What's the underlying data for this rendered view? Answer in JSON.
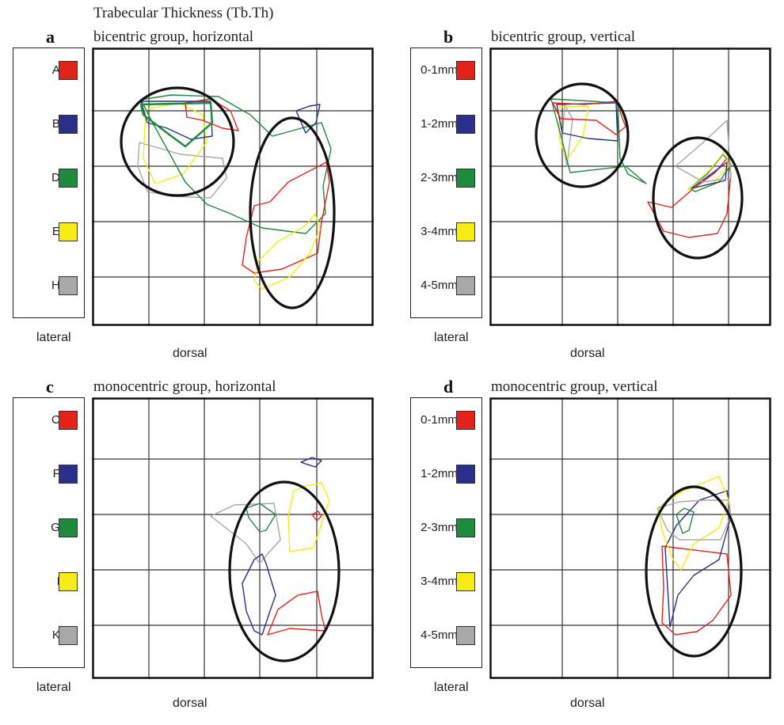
{
  "figure_title": "Trabecular Thickness (Tb.Th)",
  "side_label": "lateral",
  "bottom_label": "dorsal",
  "colors": {
    "red": "#e2231a",
    "blue": "#2b2f8c",
    "green": "#1e8a3c",
    "yellow": "#f7ec13",
    "gray": "#a8a8a8"
  },
  "panels": [
    {
      "letter": "a",
      "title": "bicentric group, horizontal",
      "legend": [
        {
          "label": "A:",
          "color": "#e2231a"
        },
        {
          "label": "B:",
          "color": "#2b2f8c"
        },
        {
          "label": "D:",
          "color": "#1e8a3c"
        },
        {
          "label": "E:",
          "color": "#f7ec13"
        },
        {
          "label": "H:",
          "color": "#a8a8a8"
        }
      ]
    },
    {
      "letter": "b",
      "title": "bicentric group, vertical",
      "legend": [
        {
          "label": "0-1mm:",
          "color": "#e2231a"
        },
        {
          "label": "1-2mm:",
          "color": "#2b2f8c"
        },
        {
          "label": "2-3mm:",
          "color": "#1e8a3c"
        },
        {
          "label": "3-4mm:",
          "color": "#f7ec13"
        },
        {
          "label": "4-5mm:",
          "color": "#a8a8a8"
        }
      ]
    },
    {
      "letter": "c",
      "title": "monocentric group, horizontal",
      "legend": [
        {
          "label": "C:",
          "color": "#e2231a"
        },
        {
          "label": "F:",
          "color": "#2b2f8c"
        },
        {
          "label": "G:",
          "color": "#1e8a3c"
        },
        {
          "label": "I:",
          "color": "#f7ec13"
        },
        {
          "label": "K:",
          "color": "#a8a8a8"
        }
      ]
    },
    {
      "letter": "d",
      "title": "monocentric group, vertical",
      "legend": [
        {
          "label": "0-1mm:",
          "color": "#e2231a"
        },
        {
          "label": "1-2mm:",
          "color": "#2b2f8c"
        },
        {
          "label": "2-3mm:",
          "color": "#1e8a3c"
        },
        {
          "label": "3-4mm:",
          "color": "#f7ec13"
        },
        {
          "label": "4-5mm:",
          "color": "#a8a8a8"
        }
      ]
    }
  ]
}
